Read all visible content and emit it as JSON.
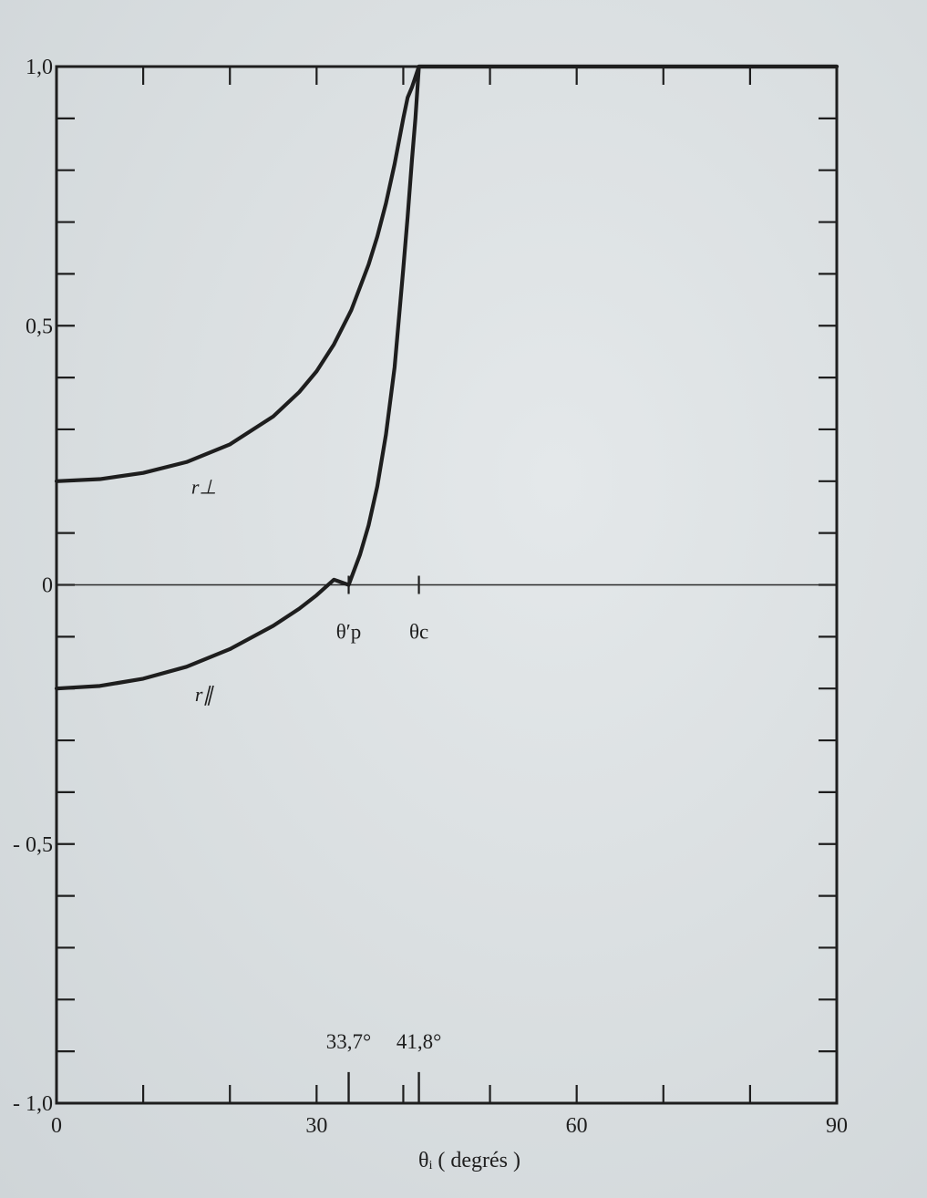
{
  "chart_data": {
    "type": "line",
    "title": "",
    "xlabel": "θᵢ ( degrés )",
    "ylabel": "",
    "xlim": [
      0,
      90
    ],
    "ylim": [
      -1.0,
      1.0
    ],
    "grid": false,
    "x_ticks": [
      0,
      10,
      20,
      30,
      40,
      50,
      60,
      70,
      80,
      90
    ],
    "x_tick_labels": [
      {
        "x": 0,
        "text": "0"
      },
      {
        "x": 30,
        "text": "30"
      },
      {
        "x": 60,
        "text": "60"
      },
      {
        "x": 90,
        "text": "90"
      }
    ],
    "y_ticks": [
      -1.0,
      -0.9,
      -0.8,
      -0.7,
      -0.6,
      -0.5,
      -0.4,
      -0.3,
      -0.2,
      -0.1,
      0,
      0.1,
      0.2,
      0.3,
      0.4,
      0.5,
      0.6,
      0.7,
      0.8,
      0.9,
      1.0
    ],
    "y_tick_labels": [
      {
        "y": 1.0,
        "text": "1,0"
      },
      {
        "y": 0.5,
        "text": "0,5"
      },
      {
        "y": 0,
        "text": "0"
      },
      {
        "y": -0.5,
        "text": "- 0,5"
      },
      {
        "y": -1.0,
        "text": "- 1,0"
      }
    ],
    "series": [
      {
        "name": "r⊥",
        "x": [
          0,
          5,
          10,
          15,
          20,
          25,
          28,
          30,
          32,
          34,
          36,
          37,
          38,
          39,
          40,
          40.5,
          41,
          41.4,
          41.8,
          45,
          50,
          60,
          70,
          80,
          90
        ],
        "y": [
          0.2,
          0.204,
          0.216,
          0.237,
          0.271,
          0.325,
          0.372,
          0.412,
          0.464,
          0.53,
          0.618,
          0.672,
          0.736,
          0.812,
          0.9,
          0.94,
          0.96,
          0.98,
          1.0,
          1.0,
          1.0,
          1.0,
          1.0,
          1.0,
          1.0
        ]
      },
      {
        "name": "r∥",
        "x": [
          0,
          5,
          10,
          15,
          20,
          25,
          28,
          30,
          32,
          33.7,
          35,
          36,
          37,
          38,
          39,
          40,
          40.5,
          41,
          41.4,
          41.8,
          45,
          50,
          60,
          70,
          80,
          90
        ],
        "y": [
          -0.2,
          -0.195,
          -0.181,
          -0.158,
          -0.124,
          -0.079,
          -0.046,
          -0.02,
          0.01,
          0.0,
          0.058,
          0.115,
          0.19,
          0.29,
          0.42,
          0.61,
          0.71,
          0.82,
          0.9,
          1.0,
          1.0,
          1.0,
          1.0,
          1.0,
          1.0,
          1.0
        ]
      }
    ],
    "curve_labels": [
      {
        "text": "r⊥",
        "x": 17,
        "y": 0.19
      },
      {
        "text": "r∥",
        "x": 17,
        "y": -0.21
      }
    ],
    "annotations": [
      {
        "text": "θ′p",
        "x": 33.7,
        "y": -0.09
      },
      {
        "text": "θc",
        "x": 41.8,
        "y": -0.09
      },
      {
        "text": "33,7°",
        "x": 33.7,
        "y": -0.88
      },
      {
        "text": "41,8°",
        "x": 41.8,
        "y": -0.88
      }
    ],
    "marker_lines": [
      {
        "x": 33.7,
        "y_from": -1.0,
        "y_to": -0.94
      },
      {
        "x": 41.8,
        "y_from": -1.0,
        "y_to": -0.94
      }
    ]
  }
}
